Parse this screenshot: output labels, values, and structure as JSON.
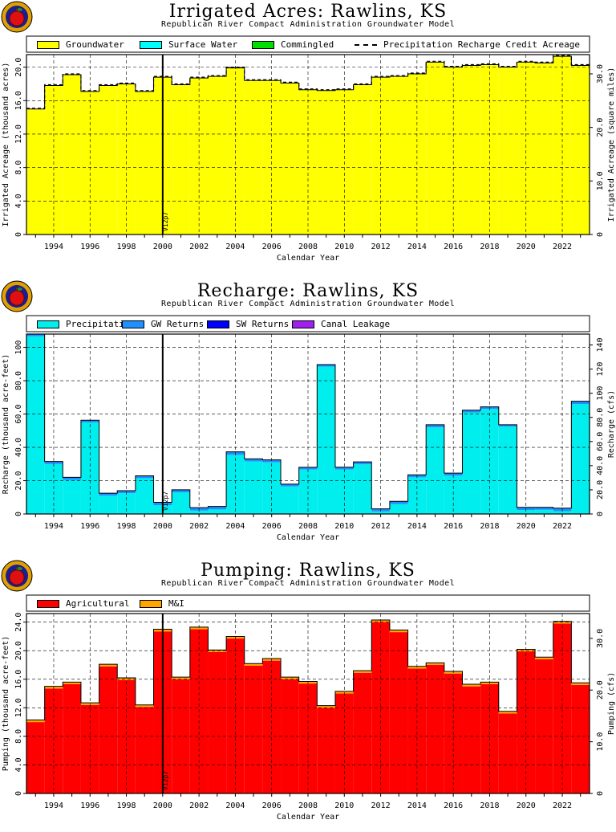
{
  "logo_colors": {
    "outer": "#e0a000",
    "inner": "#1d1d8f",
    "apple": "#e01010",
    "leaf": "#2a8a2a"
  },
  "charts": [
    {
      "title": "Irrigated Acres: Rawlins, KS",
      "subtitle": "Republican River Compact Administration Groundwater Model",
      "xlabel": "Calendar Year",
      "ylabel": "Irrigated Acreage (thousand acres)",
      "y2label": "Irrigated Acreage (square miles)",
      "marker": "V12p7",
      "legend": [
        {
          "label": "Groundwater",
          "color": "#ffff00",
          "kind": "box"
        },
        {
          "label": "Surface Water",
          "color": "#00ffff",
          "kind": "box"
        },
        {
          "label": "Commingled",
          "color": "#00e000",
          "kind": "box"
        },
        {
          "label": "Precipitation Recharge Credit Acreage",
          "color": "#000000",
          "kind": "dash"
        }
      ],
      "yticks": [
        "0",
        "4.0",
        "8.0",
        "12.0",
        "16.0",
        "20.0"
      ],
      "y2ticks": [
        "0",
        "10.0",
        "20.0",
        "30.0"
      ],
      "xticks": [
        "1994",
        "1996",
        "1998",
        "2000",
        "2002",
        "2004",
        "2006",
        "2008",
        "2010",
        "2012",
        "2014",
        "2016",
        "2018",
        "2020",
        "2022"
      ]
    },
    {
      "title": "Recharge: Rawlins, KS",
      "subtitle": "Republican River Compact Administration Groundwater Model",
      "xlabel": "Calendar Year",
      "ylabel": "Recharge (thousand acre-feet)",
      "y2label": "Recharge (cfs)",
      "marker": "V12p7",
      "legend": [
        {
          "label": "Precipitation",
          "color": "#00eeee",
          "kind": "box"
        },
        {
          "label": "GW Returns",
          "color": "#1e90ff",
          "kind": "box"
        },
        {
          "label": "SW Returns",
          "color": "#0000ff",
          "kind": "box"
        },
        {
          "label": "Canal Leakage",
          "color": "#a020f0",
          "kind": "box"
        }
      ],
      "yticks": [
        "0",
        "20.0",
        "40.0",
        "60.0",
        "80.0",
        "100"
      ],
      "y2ticks": [
        "0",
        "20.0",
        "40.0",
        "60.0",
        "80.0",
        "100",
        "120",
        "140"
      ],
      "xticks": [
        "1994",
        "1996",
        "1998",
        "2000",
        "2002",
        "2004",
        "2006",
        "2008",
        "2010",
        "2012",
        "2014",
        "2016",
        "2018",
        "2020",
        "2022"
      ]
    },
    {
      "title": "Pumping: Rawlins, KS",
      "subtitle": "Republican River Compact Administration Groundwater Model",
      "xlabel": "Calendar Year",
      "ylabel": "Pumping (thousand acre-feet)",
      "y2label": "Pumping (cfs)",
      "marker": "V12p7",
      "legend": [
        {
          "label": "Agricultural",
          "color": "#ff0000",
          "kind": "box"
        },
        {
          "label": "M&I",
          "color": "#ffa500",
          "kind": "box"
        }
      ],
      "yticks": [
        "0",
        "4.0",
        "8.0",
        "12.0",
        "16.0",
        "20.0",
        "24.0"
      ],
      "y2ticks": [
        "0",
        "10.0",
        "20.0",
        "30.0"
      ],
      "xticks": [
        "1994",
        "1996",
        "1998",
        "2000",
        "2002",
        "2004",
        "2006",
        "2008",
        "2010",
        "2012",
        "2014",
        "2016",
        "2018",
        "2020",
        "2022"
      ]
    }
  ],
  "chart_data": [
    {
      "type": "bar",
      "stacked": true,
      "title": "Irrigated Acres: Rawlins, KS",
      "xlabel": "Calendar Year",
      "ylabel": "Irrigated Acreage (thousand acres)",
      "y2label": "Irrigated Acreage (square miles)",
      "xlim": [
        1993,
        2024
      ],
      "ylim": [
        0,
        21.5
      ],
      "y2lim": [
        0,
        33.6
      ],
      "grid": true,
      "legend_position": "top",
      "vline_year": 2000.5,
      "categories": [
        "1993",
        "1994",
        "1995",
        "1996",
        "1997",
        "1998",
        "1999",
        "2000",
        "2001",
        "2002",
        "2003",
        "2004",
        "2005",
        "2006",
        "2007",
        "2008",
        "2009",
        "2010",
        "2011",
        "2012",
        "2013",
        "2014",
        "2015",
        "2016",
        "2017",
        "2018",
        "2019",
        "2020",
        "2021",
        "2022",
        "2023"
      ],
      "series": [
        {
          "name": "Groundwater",
          "color": "#ffff00",
          "values": [
            15.0,
            17.8,
            19.1,
            17.1,
            17.8,
            18.0,
            17.1,
            18.8,
            17.9,
            18.7,
            18.9,
            19.9,
            18.4,
            18.4,
            18.1,
            17.3,
            17.2,
            17.3,
            17.9,
            18.8,
            18.9,
            19.2,
            20.6,
            20.0,
            20.2,
            20.3,
            20.0,
            20.6,
            20.5,
            21.3,
            20.2
          ]
        },
        {
          "name": "Surface Water",
          "color": "#00ffff",
          "values": [
            0,
            0,
            0,
            0,
            0,
            0,
            0,
            0,
            0,
            0,
            0,
            0,
            0,
            0,
            0,
            0,
            0,
            0,
            0,
            0,
            0,
            0,
            0,
            0,
            0,
            0,
            0,
            0,
            0,
            0,
            0
          ]
        },
        {
          "name": "Commingled",
          "color": "#00e000",
          "values": [
            0,
            0,
            0,
            0,
            0,
            0,
            0,
            0,
            0,
            0,
            0,
            0,
            0,
            0,
            0,
            0,
            0,
            0,
            0,
            0,
            0,
            0,
            0,
            0,
            0,
            0,
            0,
            0,
            0,
            0,
            0
          ]
        },
        {
          "name": "Precipitation Recharge Credit Acreage",
          "color": "#000000",
          "kind": "dash",
          "values": [
            15.1,
            17.9,
            19.2,
            17.2,
            17.9,
            18.1,
            17.2,
            18.9,
            18.0,
            18.8,
            19.0,
            20.0,
            18.5,
            18.5,
            18.2,
            17.4,
            17.3,
            17.4,
            18.0,
            18.9,
            19.0,
            19.3,
            20.7,
            20.1,
            20.3,
            20.4,
            20.1,
            20.7,
            20.6,
            21.4,
            20.3
          ]
        }
      ]
    },
    {
      "type": "bar",
      "stacked": true,
      "title": "Recharge: Rawlins, KS",
      "xlabel": "Calendar Year",
      "ylabel": "Recharge (thousand acre-feet)",
      "y2label": "Recharge (cfs)",
      "xlim": [
        1993,
        2024
      ],
      "ylim": [
        0,
        108
      ],
      "y2lim": [
        0,
        149
      ],
      "grid": true,
      "legend_position": "top",
      "vline_year": 2000.5,
      "categories": [
        "1993",
        "1994",
        "1995",
        "1996",
        "1997",
        "1998",
        "1999",
        "2000",
        "2001",
        "2002",
        "2003",
        "2004",
        "2005",
        "2006",
        "2007",
        "2008",
        "2009",
        "2010",
        "2011",
        "2012",
        "2013",
        "2014",
        "2015",
        "2016",
        "2017",
        "2018",
        "2019",
        "2020",
        "2021",
        "2022",
        "2023"
      ],
      "series": [
        {
          "name": "Precipitation",
          "color": "#00eeee",
          "values": [
            106.7,
            30.0,
            20.5,
            55.0,
            11.0,
            12.5,
            21.5,
            5.3,
            13.0,
            2.0,
            2.7,
            35.5,
            31.6,
            31.0,
            16.5,
            26.7,
            88.5,
            26.7,
            29.8,
            1.5,
            6.0,
            22.0,
            52.0,
            23.0,
            61.0,
            63.0,
            52.5,
            2.4,
            2.5,
            1.7,
            66.0
          ]
        },
        {
          "name": "GW Returns",
          "color": "#1e90ff",
          "values": [
            1.3,
            1.5,
            1.5,
            1.3,
            1.5,
            1.5,
            1.4,
            1.7,
            1.5,
            1.8,
            1.8,
            1.8,
            1.5,
            1.5,
            1.4,
            1.3,
            1.2,
            1.4,
            1.5,
            1.6,
            1.6,
            1.5,
            1.6,
            1.5,
            1.3,
            1.3,
            1.1,
            1.6,
            1.5,
            1.8,
            1.7
          ]
        },
        {
          "name": "SW Returns",
          "color": "#0000ff",
          "values": [
            0,
            0,
            0,
            0,
            0,
            0,
            0,
            0,
            0,
            0,
            0,
            0,
            0,
            0,
            0,
            0,
            0,
            0,
            0,
            0,
            0,
            0,
            0,
            0,
            0,
            0,
            0,
            0,
            0,
            0,
            0
          ]
        },
        {
          "name": "Canal Leakage",
          "color": "#a020f0",
          "values": [
            0,
            0,
            0,
            0,
            0,
            0,
            0,
            0,
            0,
            0,
            0,
            0,
            0,
            0,
            0,
            0,
            0,
            0,
            0,
            0,
            0,
            0,
            0,
            0,
            0,
            0,
            0,
            0,
            0,
            0,
            0
          ]
        }
      ]
    },
    {
      "type": "bar",
      "stacked": true,
      "title": "Pumping: Rawlins, KS",
      "xlabel": "Calendar Year",
      "ylabel": "Pumping (thousand acre-feet)",
      "y2label": "Pumping (cfs)",
      "xlim": [
        1993,
        2024
      ],
      "ylim": [
        0,
        25.2
      ],
      "y2lim": [
        0,
        34.8
      ],
      "grid": true,
      "legend_position": "top",
      "vline_year": 2000.5,
      "categories": [
        "1993",
        "1994",
        "1995",
        "1996",
        "1997",
        "1998",
        "1999",
        "2000",
        "2001",
        "2002",
        "2003",
        "2004",
        "2005",
        "2006",
        "2007",
        "2008",
        "2009",
        "2010",
        "2011",
        "2012",
        "2013",
        "2014",
        "2015",
        "2016",
        "2017",
        "2018",
        "2019",
        "2020",
        "2021",
        "2022",
        "2023"
      ],
      "series": [
        {
          "name": "Agricultural",
          "color": "#ff0000",
          "values": [
            10.0,
            14.7,
            15.3,
            12.4,
            17.8,
            15.9,
            12.1,
            22.7,
            16.0,
            23.0,
            19.8,
            21.7,
            17.9,
            18.6,
            16.0,
            15.4,
            12.0,
            14.0,
            16.9,
            24.0,
            22.6,
            17.5,
            18.0,
            16.8,
            15.0,
            15.3,
            11.2,
            19.9,
            18.8,
            23.8,
            15.2
          ]
        },
        {
          "name": "M&I",
          "color": "#ffa500",
          "values": [
            0.3,
            0.3,
            0.3,
            0.3,
            0.3,
            0.3,
            0.3,
            0.3,
            0.3,
            0.3,
            0.3,
            0.3,
            0.3,
            0.3,
            0.3,
            0.3,
            0.3,
            0.3,
            0.3,
            0.3,
            0.3,
            0.3,
            0.3,
            0.3,
            0.3,
            0.3,
            0.3,
            0.3,
            0.3,
            0.3,
            0.3
          ]
        }
      ]
    }
  ]
}
